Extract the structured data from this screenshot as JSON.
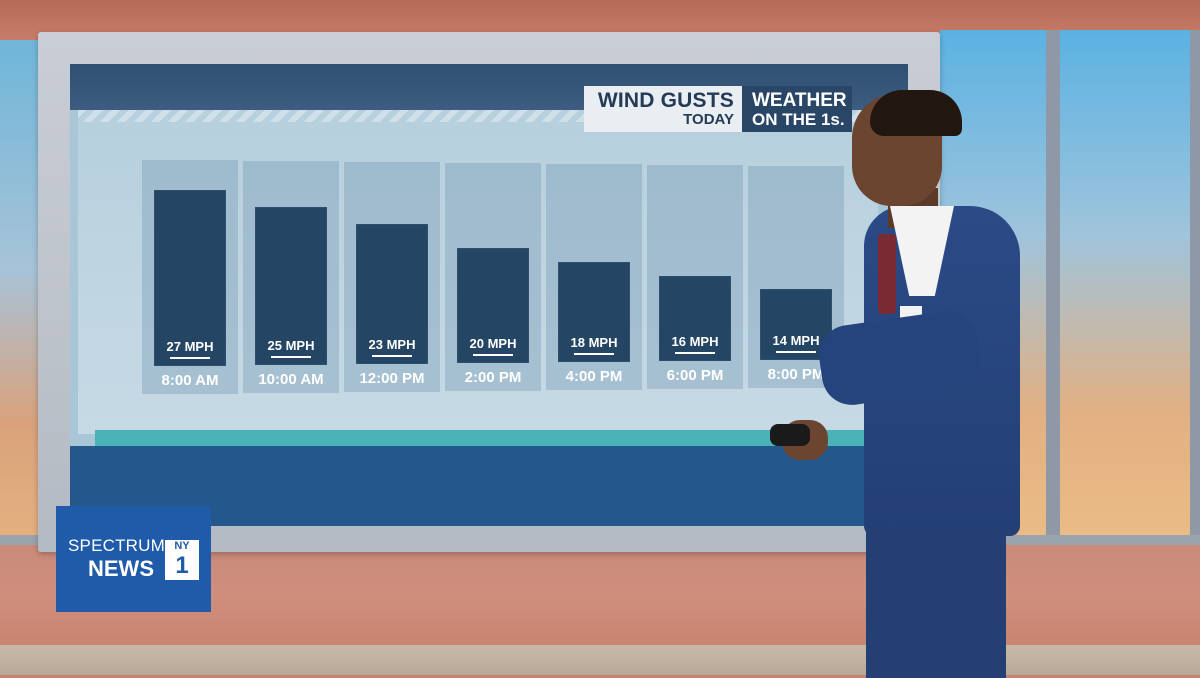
{
  "graphic": {
    "title": "WIND GUSTS",
    "subtitle": "TODAY",
    "brand_line1": "WEATHER",
    "brand_line2": "ON THE 1s."
  },
  "chart_data": {
    "type": "bar",
    "title": "WIND GUSTS TODAY",
    "unit": "MPH",
    "categories": [
      "8:00 AM",
      "10:00 AM",
      "12:00 PM",
      "2:00 PM",
      "4:00 PM",
      "6:00 PM",
      "8:00 PM"
    ],
    "values": [
      27,
      25,
      23,
      20,
      18,
      16,
      14
    ],
    "value_labels": [
      "27 MPH",
      "25 MPH",
      "23 MPH",
      "20 MPH",
      "18 MPH",
      "16 MPH",
      "14 MPH"
    ],
    "colors": {
      "bar": "#244564",
      "column": "#9fbfd2"
    }
  },
  "logo": {
    "line1": "SPECTRUM",
    "line2": "NEWS",
    "badge_top": "NY",
    "badge_bottom": "1"
  },
  "colors": {
    "screen_bottom": "#24588c",
    "teal_strip": "#4ab3b8",
    "logo_bg": "#1f5ba8"
  }
}
